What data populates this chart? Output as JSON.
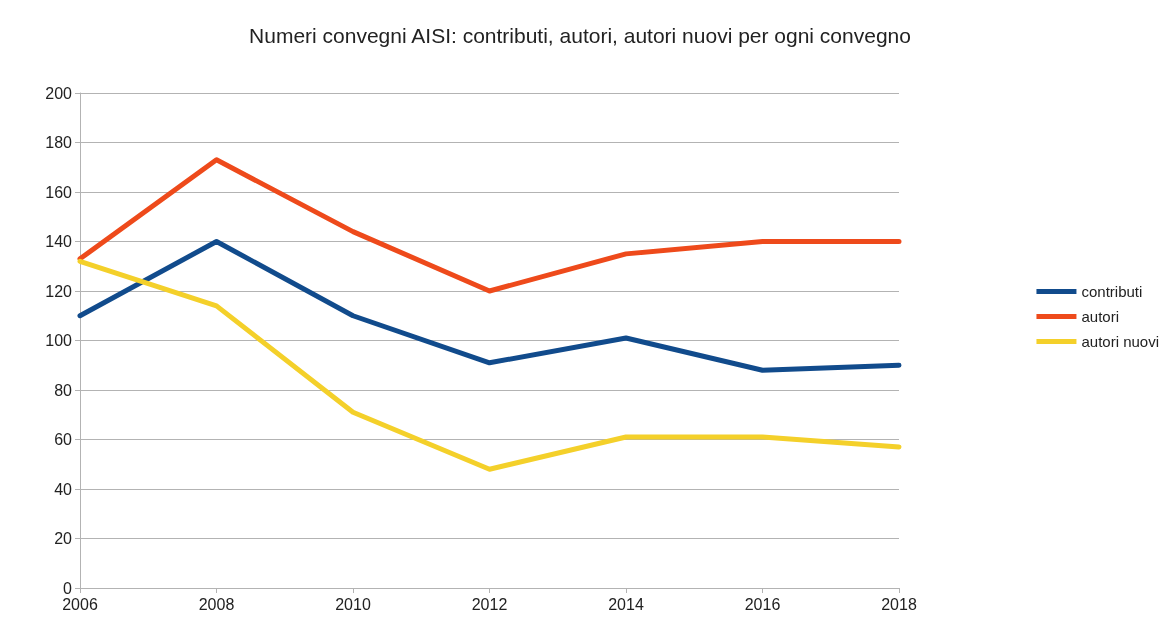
{
  "chart_data": {
    "type": "line",
    "title": "Numeri convegni AISI: contributi, autori, autori nuovi per ogni convegno",
    "x": [
      2006,
      2008,
      2010,
      2012,
      2014,
      2016,
      2018
    ],
    "series": [
      {
        "name": "contributi",
        "color": "#114b8c",
        "values": [
          110,
          140,
          110,
          91,
          101,
          88,
          90
        ]
      },
      {
        "name": "autori",
        "color": "#ee4a1b",
        "values": [
          133,
          173,
          144,
          120,
          135,
          140,
          140
        ]
      },
      {
        "name": "autori nuovi",
        "color": "#f4d02a",
        "values": [
          132,
          114,
          71,
          48,
          61,
          61,
          57
        ]
      }
    ],
    "xlim": [
      2006,
      2018
    ],
    "xticks": [
      2006,
      2008,
      2010,
      2012,
      2014,
      2016,
      2018
    ],
    "ylim": [
      0,
      200
    ],
    "yticks": [
      0,
      20,
      40,
      60,
      80,
      100,
      120,
      140,
      160,
      180,
      200
    ],
    "grid": "y",
    "legend": "right",
    "marker": "none",
    "line_style": "solid"
  }
}
